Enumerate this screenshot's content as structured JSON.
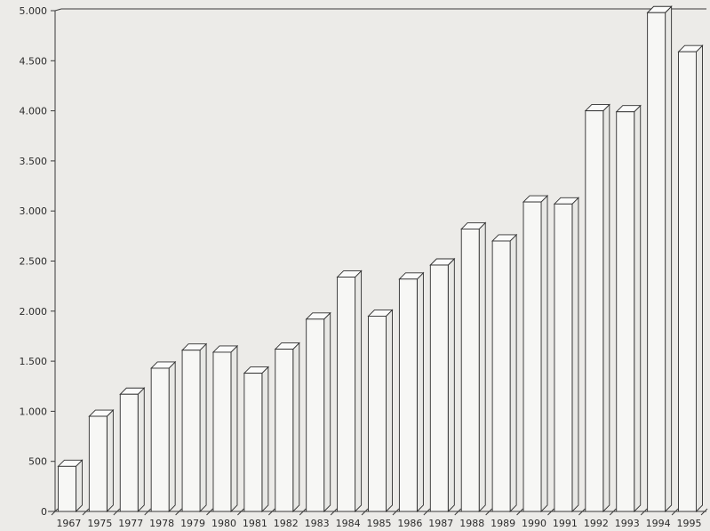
{
  "chart_data": {
    "type": "bar",
    "title": "",
    "xlabel": "",
    "ylabel": "",
    "categories": [
      "1967",
      "1975",
      "1977",
      "1978",
      "1979",
      "1980",
      "1981",
      "1982",
      "1983",
      "1984",
      "1985",
      "1986",
      "1987",
      "1988",
      "1989",
      "1990",
      "1991",
      "1992",
      "1993",
      "1994",
      "1995"
    ],
    "values": [
      450,
      950,
      1170,
      1430,
      1610,
      1590,
      1380,
      1620,
      1920,
      2340,
      1950,
      2320,
      2460,
      2820,
      2700,
      3090,
      3070,
      4000,
      3990,
      4980,
      4590
    ],
    "ylim": [
      0,
      5000
    ],
    "yticks": [
      0,
      500,
      1000,
      1500,
      2000,
      2500,
      3000,
      3500,
      4000,
      4500,
      5000
    ],
    "ytick_labels": [
      "0",
      "500",
      "1.000",
      "1.500",
      "2.000",
      "2.500",
      "3.000",
      "3.500",
      "4.000",
      "4.500",
      "5.000"
    ],
    "grid": false,
    "style": "3d-bars"
  }
}
